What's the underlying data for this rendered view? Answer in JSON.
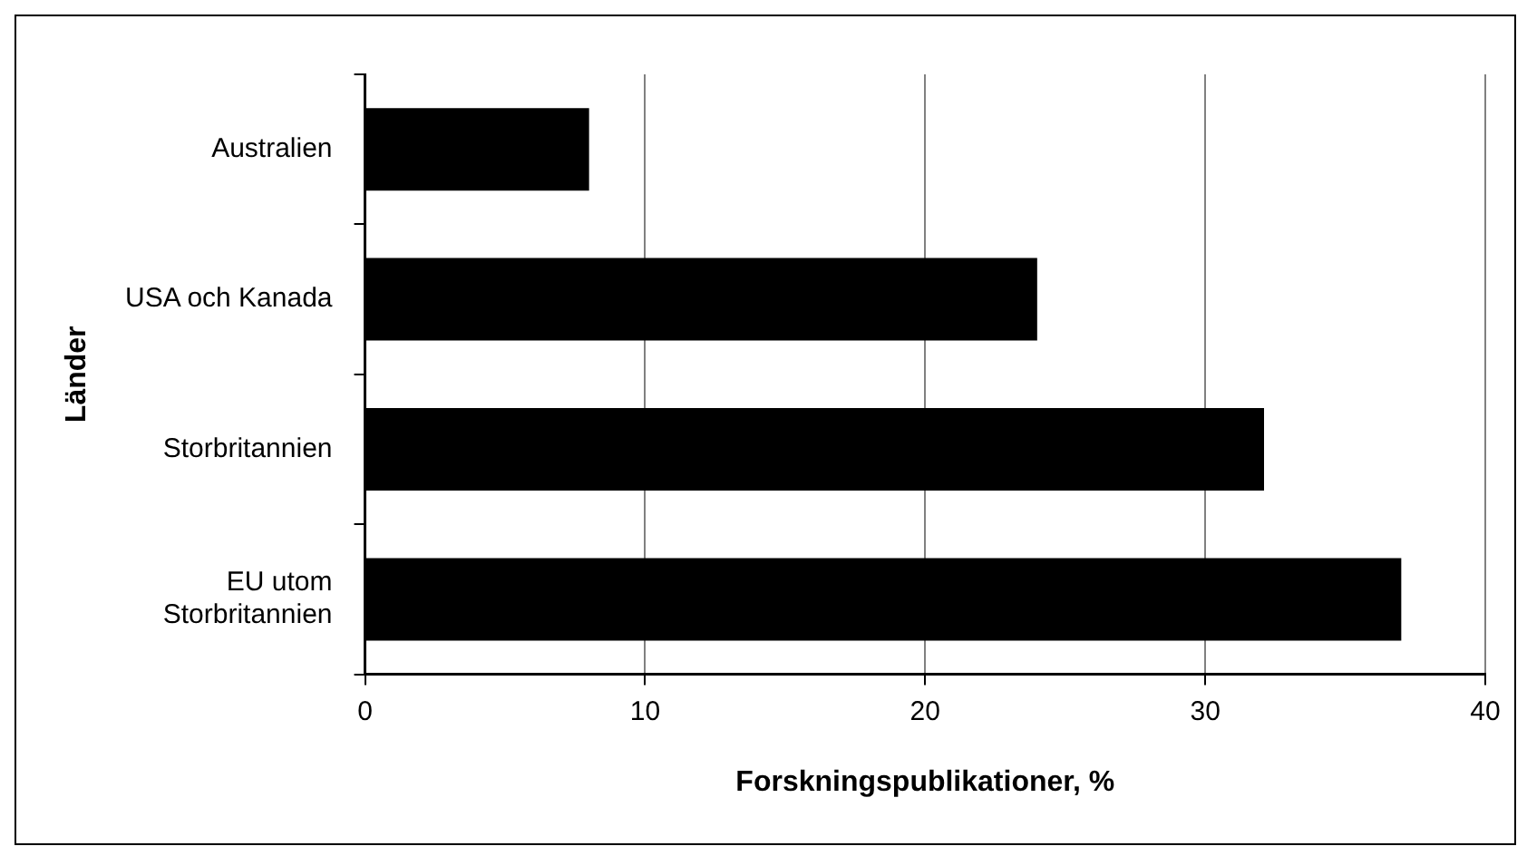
{
  "chart_data": {
    "type": "bar",
    "orientation": "horizontal",
    "categories": [
      "Australien",
      "USA och Kanada",
      "Storbritannien",
      "EU utom Storbritannien"
    ],
    "values": [
      8,
      24,
      32.1,
      37
    ],
    "color": "#000000",
    "xlabel": "Forskningspublikationer, %",
    "ylabel": "Länder",
    "xlim": [
      0,
      40
    ],
    "xticks": [
      0,
      10,
      20,
      30,
      40
    ],
    "grid": "x",
    "legend": false
  }
}
